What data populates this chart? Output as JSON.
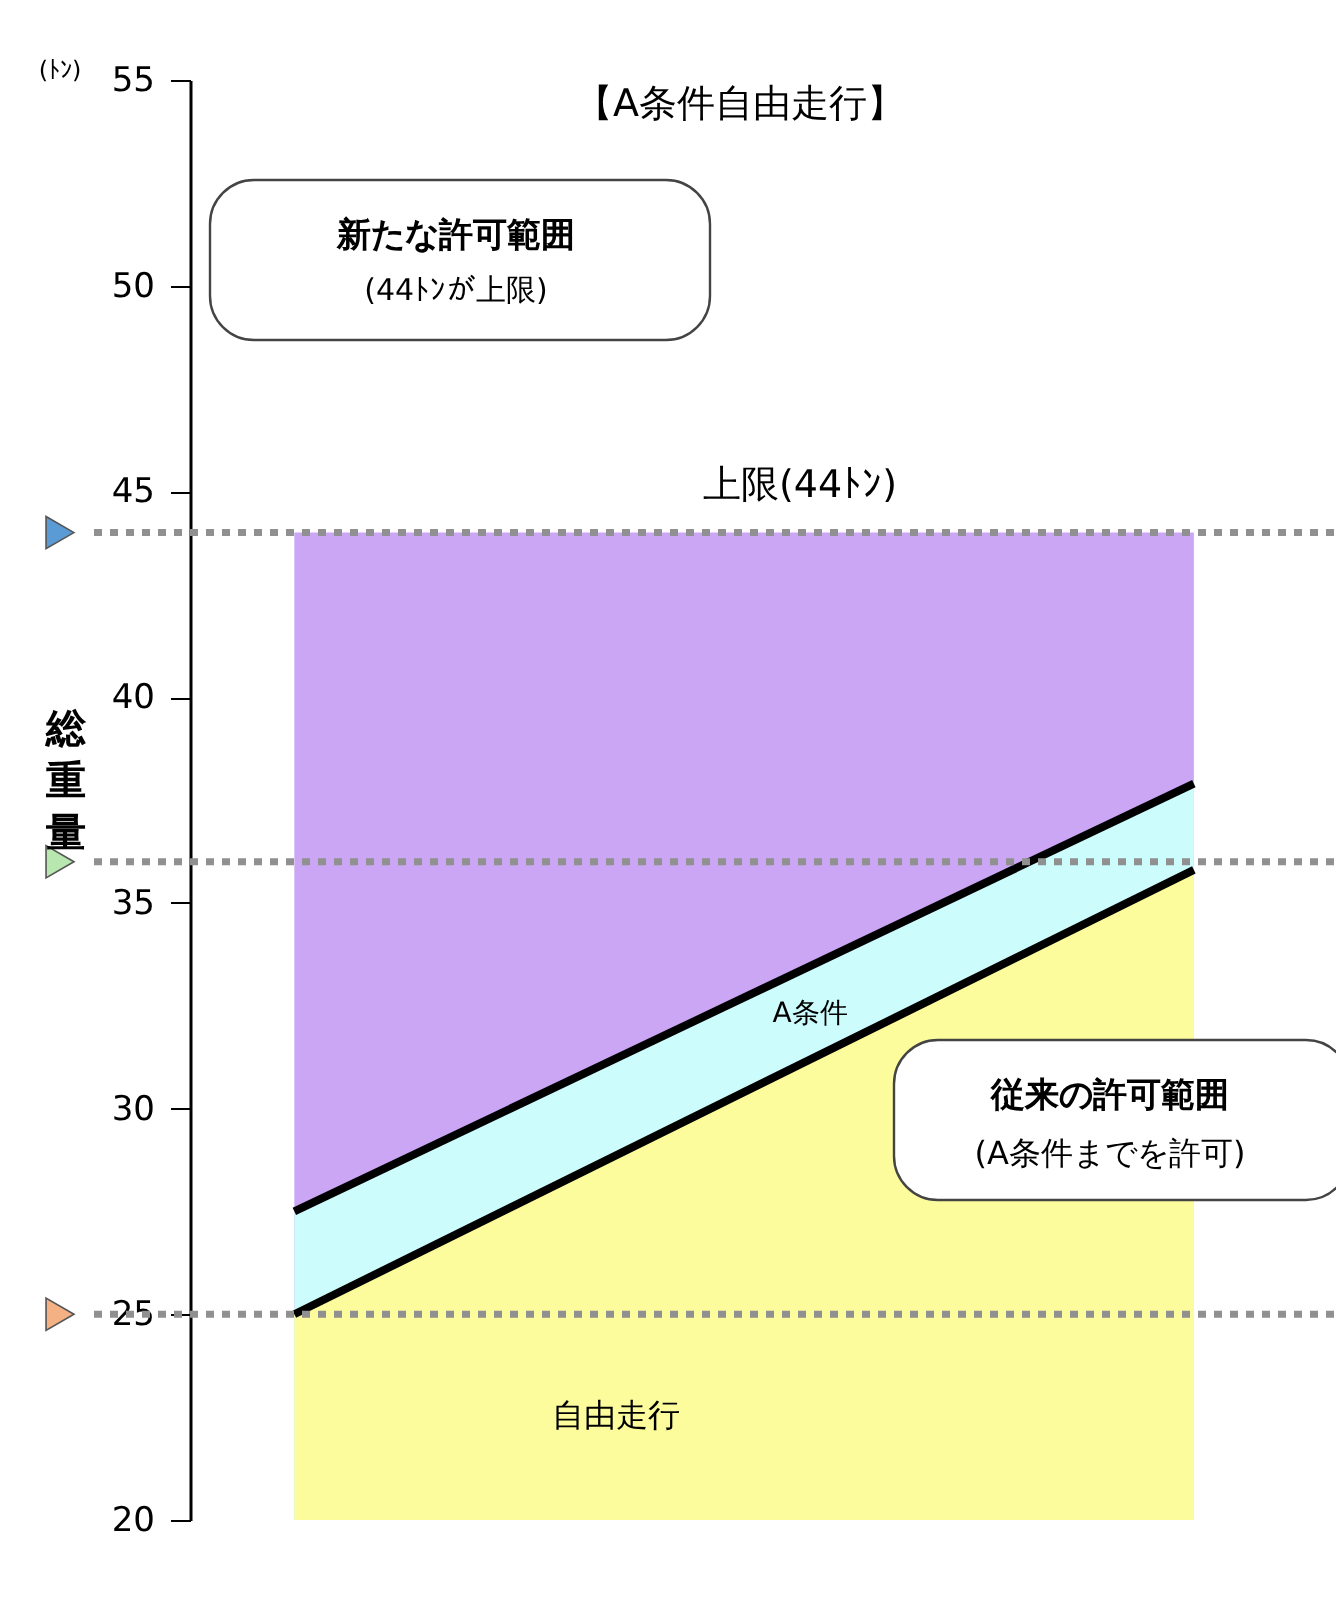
{
  "chart_data": {
    "type": "area",
    "title": "【A条件自由走行】",
    "ylabel": "総重量",
    "categories": [
      null,
      null
    ],
    "series": [
      {
        "color": "#cba6f4",
        "values": [
          44,
          44
        ]
      },
      {
        "color": "#ccfcfc",
        "values": [
          27.5,
          37.9
        ],
        "line_style": "solid"
      },
      {
        "color": "#fcfc9c",
        "values": [
          25,
          35.8
        ],
        "line_style": "solid"
      }
    ],
    "ylim": [
      20,
      55
    ],
    "yticks": [
      20,
      25,
      30,
      35,
      40,
      45,
      50,
      55
    ],
    "ref_lines": [
      {
        "axis": "y",
        "value": 44,
        "label": "上限(44ﾄﾝ)",
        "color": "#909090",
        "line_style": "dotted"
      },
      {
        "axis": "y",
        "value": 36,
        "label": null,
        "color": "#909090",
        "line_style": "dotted"
      },
      {
        "axis": "y",
        "value": 25,
        "label": null,
        "color": "#909090",
        "line_style": "dotted"
      }
    ],
    "annotations": [
      "(ﾄﾝ)",
      "新たな許可範囲",
      "(44ﾄﾝが上限)",
      "A条件",
      "従来の許可範囲",
      "(A条件までを許可)",
      "自由走行"
    ],
    "grid": false,
    "marker": "none"
  }
}
